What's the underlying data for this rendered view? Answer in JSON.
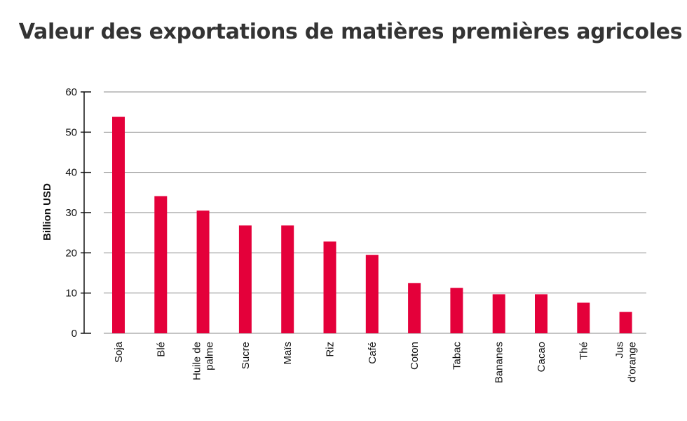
{
  "chart_data": {
    "type": "bar",
    "title": "Valeur des exportations de matières premières agricoles",
    "xlabel": "",
    "ylabel": "Billion USD",
    "ylim": [
      0,
      60
    ],
    "yticks": [
      0,
      10,
      20,
      30,
      40,
      50,
      60
    ],
    "grid": true,
    "legend": "none",
    "bar_color": "#e4003a",
    "categories": [
      "Soja",
      "Blé",
      "Huile de palme",
      "Sucre",
      "Maïs",
      "Riz",
      "Café",
      "Coton",
      "Tabac",
      "Bananes",
      "Cacao",
      "Thé",
      "Jus d'orange"
    ],
    "category_lines": [
      [
        "Soja"
      ],
      [
        "Blé"
      ],
      [
        "Huile de",
        "palme"
      ],
      [
        "Sucre"
      ],
      [
        "Maïs"
      ],
      [
        "Riz"
      ],
      [
        "Café"
      ],
      [
        "Coton"
      ],
      [
        "Tabac"
      ],
      [
        "Bananes"
      ],
      [
        "Cacao"
      ],
      [
        "Thé"
      ],
      [
        "Jus",
        "d'orange"
      ]
    ],
    "values": [
      53.8,
      34.1,
      30.5,
      26.8,
      26.8,
      22.8,
      19.5,
      12.5,
      11.3,
      9.7,
      9.7,
      7.6,
      5.3
    ]
  }
}
